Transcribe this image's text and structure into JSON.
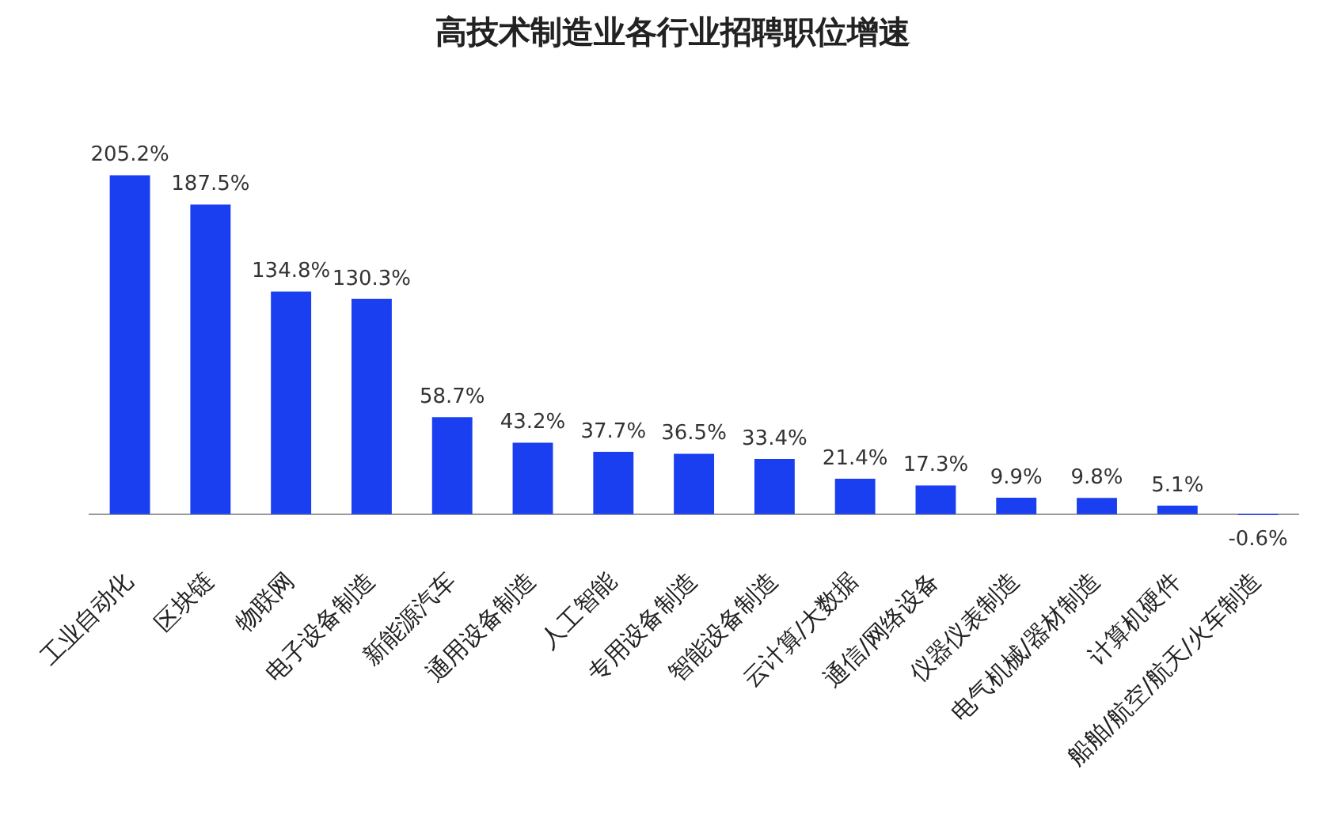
{
  "chart_data": {
    "type": "bar",
    "title": "高技术制造业各行业招聘职位增速",
    "categories": [
      "工业自动化",
      "区块链",
      "物联网",
      "电子设备制造",
      "新能源汽车",
      "通用设备制造",
      "人工智能",
      "专用设备制造",
      "智能设备制造",
      "云计算/大数据",
      "通信/网络设备",
      "仪器仪表制造",
      "电气机械/器材制造",
      "计算机硬件",
      "船舶/航空/航天/火车制造"
    ],
    "values": [
      205.2,
      187.5,
      134.8,
      130.3,
      58.7,
      43.2,
      37.7,
      36.5,
      33.4,
      21.4,
      17.3,
      9.9,
      9.8,
      5.1,
      -0.6
    ],
    "value_labels": [
      "205.2%",
      "187.5%",
      "134.8%",
      "130.3%",
      "58.7%",
      "43.2%",
      "37.7%",
      "36.5%",
      "33.4%",
      "21.4%",
      "17.3%",
      "9.9%",
      "9.8%",
      "5.1%",
      "-0.6%"
    ],
    "color": "#1a3ff0",
    "grid": false,
    "legend": false
  }
}
